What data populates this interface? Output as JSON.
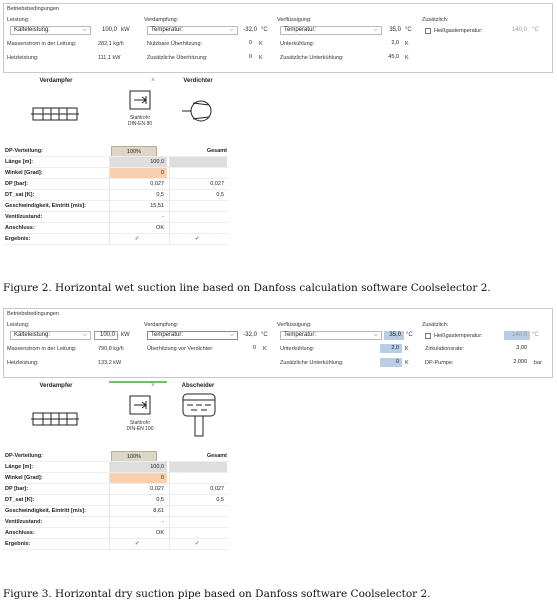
{
  "fig1": {
    "legend": "Betriebsbedingungen",
    "sections": {
      "leistung": "Leistung:",
      "verdampfung": "Verdampfung:",
      "verfluessigung": "Verflüssigung:",
      "zusaetzlich": "Zusätzlich:"
    },
    "leistung": {
      "select": "Kälteleistung:",
      "select_value": "100,0",
      "select_unit": "kW",
      "mass_label": "Massenstrom in der Leitung:",
      "mass_value": "282,1 kg/h",
      "heat_label": "Heizleistung:",
      "heat_value": "111,1 kW"
    },
    "verdampfung": {
      "select": "Temperatur:",
      "select_value": "-32,0",
      "select_unit": "°C",
      "r2_label": "Nutzbare Überhitzung:",
      "r2_value": "0",
      "r2_unit": "K",
      "r3_label": "Zusätzliche Überhitzung:",
      "r3_value": "0",
      "r3_unit": "K"
    },
    "verfluessigung": {
      "select": "Temperatur:",
      "select_value": "35,0",
      "select_unit": "°C",
      "r2_label": "Unterkühlung:",
      "r2_value": "2,0",
      "r2_unit": "K",
      "r3_label": "Zusätzliche Unterkühlung:",
      "r3_value": "45,0",
      "r3_unit": "K"
    },
    "zusaetzlich": {
      "hot_label": "Heißgastemperatur:",
      "hot_value": "140,0",
      "hot_unit": "°C"
    },
    "calc": {
      "col_a": "Verdampfer",
      "col_b": "Verdichter",
      "close": "×",
      "pipe_label": "Stahlrohr\nDIN-EN 80",
      "dp_btn": "100%",
      "gesamt": "Gesamt",
      "rows": [
        {
          "label": "DP-Verteilung:",
          "v1": "",
          "v2": ""
        },
        {
          "label": "Länge [m]:",
          "v1": "100,0",
          "v2": ""
        },
        {
          "label": "Winkel [Grad]:",
          "v1": "0",
          "v2": ""
        },
        {
          "label": "DP [bar]:",
          "v1": "0,027",
          "v2": "0,027"
        },
        {
          "label": "DT_sat [K]:",
          "v1": "0,5",
          "v2": "0,5"
        },
        {
          "label": "Geschwindigkeit, Eintritt [m/s]:",
          "v1": "15,51",
          "v2": ""
        },
        {
          "label": "Ventilzustand:",
          "v1": "-",
          "v2": ""
        },
        {
          "label": "Anschluss:",
          "v1": "OK",
          "v2": ""
        },
        {
          "label": "Ergebnis:",
          "v1": "✓",
          "v2": "✓"
        }
      ]
    },
    "caption": "Figure 2. Horizontal wet suction line based on Danfoss calculation software Coolselector 2."
  },
  "fig2": {
    "legend": "Betriebsbedingungen",
    "sections": {
      "leistung": "Leistung:",
      "verdampfung": "Verdampfung:",
      "verfluessigung": "Verflüssigung:",
      "zusaetzlich": "Zusätzlich:"
    },
    "leistung": {
      "select": "Kälteleistung:",
      "select_value": "100,0",
      "select_unit": "kW",
      "mass_label": "Massenstrom in der Leitung:",
      "mass_value": "790,8 kg/h",
      "heat_label": "Heizleistung:",
      "heat_value": "133,2 kW"
    },
    "verdampfung": {
      "select": "Temperatur:",
      "select_value": "-32,0",
      "select_unit": "°C",
      "r2_label": "Überhitzung vor Verdichter:",
      "r2_value": "0",
      "r2_unit": "K"
    },
    "verfluessigung": {
      "select": "Temperatur:",
      "select_value": "35,0",
      "select_unit": "°C",
      "r2_label": "Unterkühlung:",
      "r2_value": "2,0",
      "r2_unit": "K",
      "r3_label": "Zusätzliche Unterkühlung:",
      "r3_value": "0",
      "r3_unit": "K"
    },
    "zusaetzlich": {
      "hot_label": "Heißgastemperatur:",
      "hot_value": "140,0",
      "hot_unit": "°C",
      "circ_label": "Zirkulationsrate:",
      "circ_value": "3,00",
      "dp_label": "DP-Pumpe:",
      "dp_value": "2,000",
      "dp_unit": "bar"
    },
    "calc": {
      "col_a": "Verdampfer",
      "col_b": "Abscheider",
      "close": "×",
      "pipe_label": "Stahlrohr\nDIN-EN 100",
      "dp_btn": "100%",
      "gesamt": "Gesamt",
      "rows": [
        {
          "label": "DP-Verteilung:",
          "v1": "",
          "v2": ""
        },
        {
          "label": "Länge [m]:",
          "v1": "100,0",
          "v2": ""
        },
        {
          "label": "Winkel [Grad]:",
          "v1": "0",
          "v2": ""
        },
        {
          "label": "DP [bar]:",
          "v1": "0,027",
          "v2": "0,027"
        },
        {
          "label": "DT_sat [K]:",
          "v1": "0,5",
          "v2": "0,5"
        },
        {
          "label": "Geschwindigkeit, Eintritt [m/s]:",
          "v1": "8,61",
          "v2": ""
        },
        {
          "label": "Ventilzustand:",
          "v1": "-",
          "v2": ""
        },
        {
          "label": "Anschluss:",
          "v1": "OK",
          "v2": ""
        },
        {
          "label": "Ergebnis:",
          "v1": "✓",
          "v2": "✓"
        }
      ]
    },
    "caption": "Figure 3. Horizontal dry suction pipe based on Danfoss software Coolselector 2."
  }
}
